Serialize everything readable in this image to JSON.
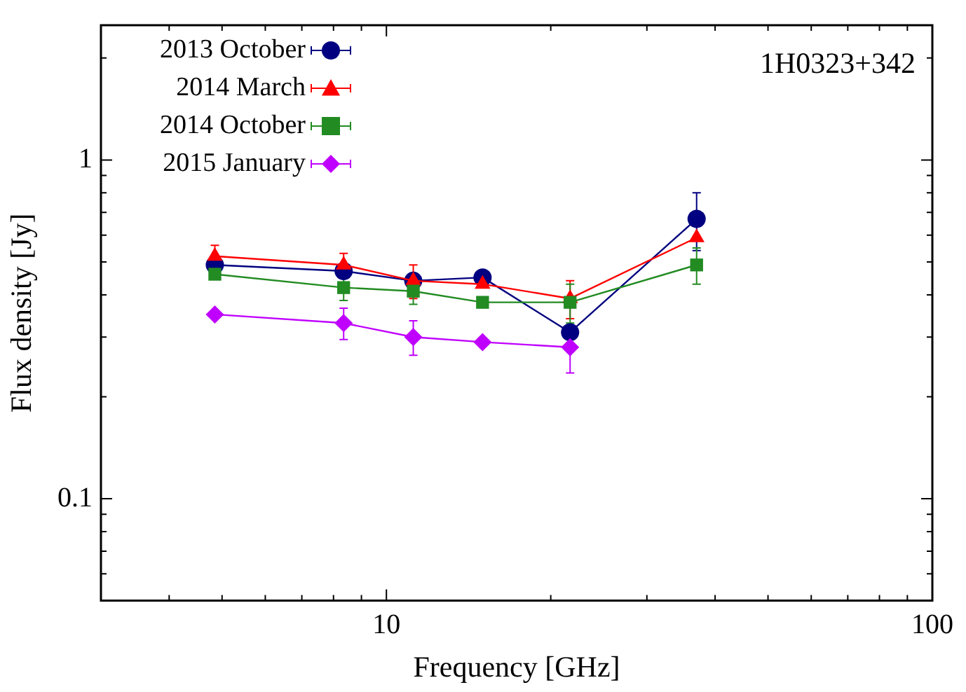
{
  "chart_data": {
    "type": "line",
    "title": "1H0323+342",
    "xlabel": "Frequency [GHz]",
    "ylabel": "Flux density [Jy]",
    "log": "xy",
    "grid": false,
    "legend": "top left",
    "x": [
      4.85,
      8.35,
      11.2,
      15,
      21.7,
      37
    ],
    "xlim": [
      3,
      100
    ],
    "xticks": [
      {
        "value": 3,
        "label": null
      },
      {
        "value": 4,
        "label": null
      },
      {
        "value": 5,
        "label": null
      },
      {
        "value": 6,
        "label": null
      },
      {
        "value": 7,
        "label": null
      },
      {
        "value": 8,
        "label": null
      },
      {
        "value": 9,
        "label": null
      },
      10,
      {
        "value": 20,
        "label": null
      },
      {
        "value": 30,
        "label": null
      },
      {
        "value": 40,
        "label": null
      },
      {
        "value": 50,
        "label": null
      },
      {
        "value": 60,
        "label": null
      },
      {
        "value": 70,
        "label": null
      },
      {
        "value": 80,
        "label": null
      },
      {
        "value": 90,
        "label": null
      },
      100
    ],
    "ylim": [
      0.05,
      2.5
    ],
    "yticks": [
      {
        "value": 0.05,
        "label": null
      },
      {
        "value": 0.06,
        "label": null
      },
      {
        "value": 0.07,
        "label": null
      },
      {
        "value": 0.08,
        "label": null
      },
      {
        "value": 0.09,
        "label": null
      },
      0.1,
      {
        "value": 0.2,
        "label": null
      },
      {
        "value": 0.3,
        "label": null
      },
      {
        "value": 0.4,
        "label": null
      },
      {
        "value": 0.5,
        "label": null
      },
      {
        "value": 0.6,
        "label": null
      },
      {
        "value": 0.7,
        "label": null
      },
      {
        "value": 0.8,
        "label": null
      },
      {
        "value": 0.9,
        "label": null
      },
      1,
      {
        "value": 2,
        "label": null
      }
    ],
    "series": [
      {
        "name": "2013 October",
        "color": "#000080",
        "marker": "circle",
        "values": [
          0.49,
          0.47,
          0.44,
          0.45,
          0.31,
          0.67
        ],
        "errors": [
          null,
          null,
          null,
          null,
          null,
          0.13
        ]
      },
      {
        "name": "2014 March",
        "color": "#ff0000",
        "marker": "triangle",
        "values": [
          0.52,
          0.49,
          0.44,
          0.43,
          0.39,
          0.59
        ],
        "errors": [
          0.04,
          0.04,
          0.05,
          null,
          0.05,
          null
        ]
      },
      {
        "name": "2014 October",
        "color": "#228b22",
        "marker": "square",
        "values": [
          0.46,
          0.42,
          0.41,
          0.38,
          0.38,
          0.49
        ],
        "errors": [
          null,
          0.035,
          0.035,
          null,
          0.05,
          0.06
        ]
      },
      {
        "name": "2015 January",
        "color": "#c000ff",
        "marker": "diamond",
        "values": [
          0.35,
          0.33,
          0.3,
          0.29,
          0.28,
          null
        ],
        "errors": [
          null,
          0.035,
          0.035,
          null,
          0.045,
          null
        ]
      }
    ]
  }
}
